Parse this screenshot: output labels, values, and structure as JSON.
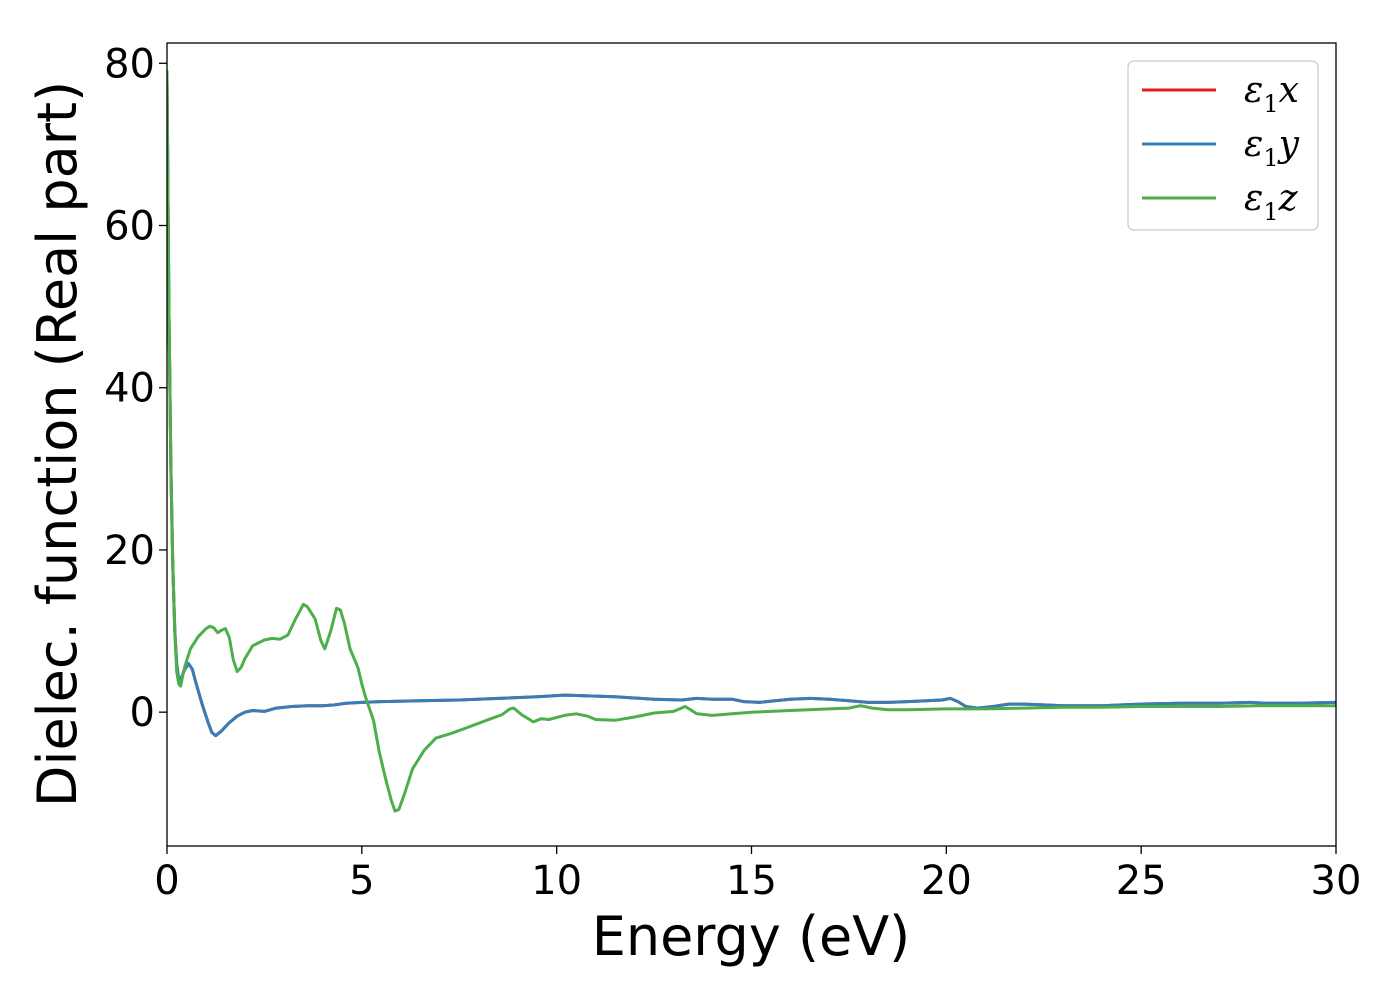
{
  "chart_data": {
    "type": "line",
    "title": "",
    "xlabel": "Energy (eV)",
    "ylabel": "Dielec. function (Real part)",
    "xlim": [
      0,
      30
    ],
    "ylim": [
      -16.5,
      82.5
    ],
    "xticks": [
      "0",
      "5",
      "10",
      "15",
      "20",
      "25",
      "30"
    ],
    "yticks": [
      "0",
      "20",
      "40",
      "60",
      "80"
    ],
    "grid": false,
    "legend_position": "top-right",
    "series": [
      {
        "name": "ε₁x",
        "legend_base": "ε",
        "legend_sub": "1",
        "legend_tail": "x",
        "color": "#e41a1c",
        "points": [
          [
            0.0,
            78
          ],
          [
            0.05,
            50
          ],
          [
            0.1,
            30
          ],
          [
            0.15,
            18
          ],
          [
            0.2,
            10
          ],
          [
            0.25,
            6
          ],
          [
            0.3,
            4
          ],
          [
            0.35,
            4
          ],
          [
            0.45,
            5.2
          ],
          [
            0.55,
            6
          ],
          [
            0.65,
            5.3
          ],
          [
            0.75,
            3.5
          ],
          [
            0.9,
            1.0
          ],
          [
            1.05,
            -1.2
          ],
          [
            1.15,
            -2.5
          ],
          [
            1.25,
            -2.9
          ],
          [
            1.4,
            -2.3
          ],
          [
            1.6,
            -1.3
          ],
          [
            1.8,
            -0.5
          ],
          [
            2.0,
            0.0
          ],
          [
            2.2,
            0.2
          ],
          [
            2.5,
            0.1
          ],
          [
            2.8,
            0.5
          ],
          [
            3.2,
            0.7
          ],
          [
            3.6,
            0.8
          ],
          [
            4.0,
            0.8
          ],
          [
            4.3,
            0.9
          ],
          [
            4.6,
            1.1
          ],
          [
            5.0,
            1.2
          ],
          [
            5.5,
            1.3
          ],
          [
            6.5,
            1.4
          ],
          [
            7.5,
            1.5
          ],
          [
            8.5,
            1.7
          ],
          [
            9.5,
            1.9
          ],
          [
            10.2,
            2.1
          ],
          [
            10.8,
            2.0
          ],
          [
            11.5,
            1.9
          ],
          [
            12.5,
            1.6
          ],
          [
            13.2,
            1.5
          ],
          [
            13.6,
            1.7
          ],
          [
            14.0,
            1.6
          ],
          [
            14.5,
            1.6
          ],
          [
            14.8,
            1.3
          ],
          [
            15.2,
            1.2
          ],
          [
            15.6,
            1.4
          ],
          [
            16.0,
            1.6
          ],
          [
            16.5,
            1.7
          ],
          [
            17.0,
            1.6
          ],
          [
            17.5,
            1.4
          ],
          [
            18.0,
            1.2
          ],
          [
            18.5,
            1.2
          ],
          [
            19.0,
            1.3
          ],
          [
            19.5,
            1.4
          ],
          [
            19.9,
            1.5
          ],
          [
            20.1,
            1.7
          ],
          [
            20.3,
            1.3
          ],
          [
            20.5,
            0.7
          ],
          [
            20.8,
            0.5
          ],
          [
            21.2,
            0.7
          ],
          [
            21.6,
            1.0
          ],
          [
            22.0,
            1.0
          ],
          [
            22.5,
            0.9
          ],
          [
            23.0,
            0.8
          ],
          [
            23.5,
            0.8
          ],
          [
            24.0,
            0.8
          ],
          [
            24.5,
            0.9
          ],
          [
            25.0,
            1.0
          ],
          [
            26.0,
            1.1
          ],
          [
            27.0,
            1.1
          ],
          [
            27.8,
            1.2
          ],
          [
            28.2,
            1.1
          ],
          [
            29.0,
            1.1
          ],
          [
            30.0,
            1.2
          ]
        ]
      },
      {
        "name": "ε₁y",
        "legend_base": "ε",
        "legend_sub": "1",
        "legend_tail": "y",
        "color": "#377eb8",
        "points": [
          [
            0.0,
            78
          ],
          [
            0.05,
            50
          ],
          [
            0.1,
            30
          ],
          [
            0.15,
            18
          ],
          [
            0.2,
            10
          ],
          [
            0.25,
            6
          ],
          [
            0.3,
            4
          ],
          [
            0.35,
            4
          ],
          [
            0.45,
            5.2
          ],
          [
            0.55,
            6
          ],
          [
            0.65,
            5.3
          ],
          [
            0.75,
            3.5
          ],
          [
            0.9,
            1.0
          ],
          [
            1.05,
            -1.2
          ],
          [
            1.15,
            -2.5
          ],
          [
            1.25,
            -2.9
          ],
          [
            1.4,
            -2.3
          ],
          [
            1.6,
            -1.3
          ],
          [
            1.8,
            -0.5
          ],
          [
            2.0,
            0.0
          ],
          [
            2.2,
            0.2
          ],
          [
            2.5,
            0.1
          ],
          [
            2.8,
            0.5
          ],
          [
            3.2,
            0.7
          ],
          [
            3.6,
            0.8
          ],
          [
            4.0,
            0.8
          ],
          [
            4.3,
            0.9
          ],
          [
            4.6,
            1.1
          ],
          [
            5.0,
            1.2
          ],
          [
            5.5,
            1.3
          ],
          [
            6.5,
            1.4
          ],
          [
            7.5,
            1.5
          ],
          [
            8.5,
            1.7
          ],
          [
            9.5,
            1.9
          ],
          [
            10.2,
            2.1
          ],
          [
            10.8,
            2.0
          ],
          [
            11.5,
            1.9
          ],
          [
            12.5,
            1.6
          ],
          [
            13.2,
            1.5
          ],
          [
            13.6,
            1.7
          ],
          [
            14.0,
            1.6
          ],
          [
            14.5,
            1.6
          ],
          [
            14.8,
            1.3
          ],
          [
            15.2,
            1.2
          ],
          [
            15.6,
            1.4
          ],
          [
            16.0,
            1.6
          ],
          [
            16.5,
            1.7
          ],
          [
            17.0,
            1.6
          ],
          [
            17.5,
            1.4
          ],
          [
            18.0,
            1.2
          ],
          [
            18.5,
            1.2
          ],
          [
            19.0,
            1.3
          ],
          [
            19.5,
            1.4
          ],
          [
            19.9,
            1.5
          ],
          [
            20.1,
            1.7
          ],
          [
            20.3,
            1.3
          ],
          [
            20.5,
            0.7
          ],
          [
            20.8,
            0.5
          ],
          [
            21.2,
            0.7
          ],
          [
            21.6,
            1.0
          ],
          [
            22.0,
            1.0
          ],
          [
            22.5,
            0.9
          ],
          [
            23.0,
            0.8
          ],
          [
            23.5,
            0.8
          ],
          [
            24.0,
            0.8
          ],
          [
            24.5,
            0.9
          ],
          [
            25.0,
            1.0
          ],
          [
            26.0,
            1.1
          ],
          [
            27.0,
            1.1
          ],
          [
            27.8,
            1.2
          ],
          [
            28.2,
            1.1
          ],
          [
            29.0,
            1.1
          ],
          [
            30.0,
            1.2
          ]
        ]
      },
      {
        "name": "ε₁z",
        "legend_base": "ε",
        "legend_sub": "1",
        "legend_tail": "z",
        "color": "#4daf4a",
        "points": [
          [
            0.0,
            79
          ],
          [
            0.05,
            50
          ],
          [
            0.1,
            30
          ],
          [
            0.15,
            18
          ],
          [
            0.2,
            10
          ],
          [
            0.25,
            5
          ],
          [
            0.3,
            3.5
          ],
          [
            0.35,
            3.2
          ],
          [
            0.45,
            5.5
          ],
          [
            0.6,
            7.8
          ],
          [
            0.8,
            9.3
          ],
          [
            1.0,
            10.3
          ],
          [
            1.1,
            10.6
          ],
          [
            1.2,
            10.4
          ],
          [
            1.3,
            9.8
          ],
          [
            1.4,
            10.1
          ],
          [
            1.5,
            10.3
          ],
          [
            1.6,
            9.2
          ],
          [
            1.7,
            6.5
          ],
          [
            1.8,
            5.0
          ],
          [
            1.9,
            5.5
          ],
          [
            2.0,
            6.6
          ],
          [
            2.2,
            8.2
          ],
          [
            2.5,
            8.9
          ],
          [
            2.7,
            9.1
          ],
          [
            2.9,
            9.0
          ],
          [
            3.1,
            9.5
          ],
          [
            3.3,
            11.5
          ],
          [
            3.5,
            13.3
          ],
          [
            3.6,
            13.0
          ],
          [
            3.8,
            11.5
          ],
          [
            3.95,
            8.8
          ],
          [
            4.05,
            7.8
          ],
          [
            4.2,
            10.0
          ],
          [
            4.35,
            12.8
          ],
          [
            4.45,
            12.6
          ],
          [
            4.55,
            11.0
          ],
          [
            4.7,
            7.8
          ],
          [
            4.9,
            5.5
          ],
          [
            5.0,
            3.5
          ],
          [
            5.1,
            1.8
          ],
          [
            5.3,
            -1.0
          ],
          [
            5.45,
            -5.0
          ],
          [
            5.6,
            -8.0
          ],
          [
            5.75,
            -10.8
          ],
          [
            5.85,
            -12.2
          ],
          [
            5.95,
            -12.0
          ],
          [
            6.1,
            -10.0
          ],
          [
            6.3,
            -7.0
          ],
          [
            6.6,
            -4.7
          ],
          [
            6.9,
            -3.2
          ],
          [
            7.3,
            -2.6
          ],
          [
            7.7,
            -1.9
          ],
          [
            8.2,
            -1.0
          ],
          [
            8.6,
            -0.3
          ],
          [
            8.8,
            0.4
          ],
          [
            8.9,
            0.5
          ],
          [
            9.1,
            -0.3
          ],
          [
            9.4,
            -1.2
          ],
          [
            9.6,
            -0.8
          ],
          [
            9.8,
            -0.9
          ],
          [
            10.2,
            -0.4
          ],
          [
            10.5,
            -0.2
          ],
          [
            10.8,
            -0.5
          ],
          [
            11.0,
            -0.9
          ],
          [
            11.5,
            -1.0
          ],
          [
            12.0,
            -0.6
          ],
          [
            12.5,
            -0.1
          ],
          [
            13.0,
            0.1
          ],
          [
            13.3,
            0.7
          ],
          [
            13.6,
            -0.2
          ],
          [
            14.0,
            -0.4
          ],
          [
            14.5,
            -0.2
          ],
          [
            15.0,
            0.0
          ],
          [
            16.0,
            0.2
          ],
          [
            17.0,
            0.4
          ],
          [
            17.5,
            0.5
          ],
          [
            17.8,
            0.8
          ],
          [
            18.1,
            0.5
          ],
          [
            18.5,
            0.3
          ],
          [
            19.0,
            0.3
          ],
          [
            20.0,
            0.4
          ],
          [
            21.0,
            0.4
          ],
          [
            22.0,
            0.5
          ],
          [
            23.0,
            0.6
          ],
          [
            24.0,
            0.6
          ],
          [
            25.0,
            0.7
          ],
          [
            26.0,
            0.7
          ],
          [
            27.0,
            0.7
          ],
          [
            28.0,
            0.8
          ],
          [
            30.0,
            0.8
          ]
        ]
      }
    ]
  }
}
